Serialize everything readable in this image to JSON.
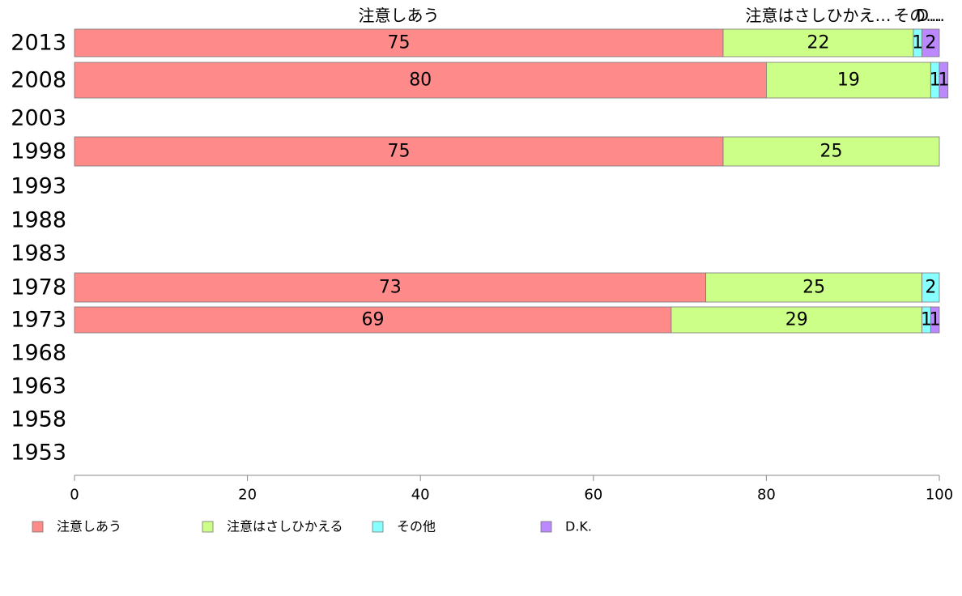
{
  "chart_data": {
    "type": "bar",
    "orientation": "horizontal",
    "stacked": true,
    "categories": [
      "2013",
      "2008",
      "2003",
      "1998",
      "1993",
      "1988",
      "1983",
      "1978",
      "1973",
      "1968",
      "1963",
      "1958",
      "1953"
    ],
    "series": [
      {
        "name": "注意しあう",
        "color": "#FF8A8A",
        "values": [
          75,
          80,
          null,
          75,
          null,
          null,
          null,
          73,
          69,
          null,
          null,
          null,
          null
        ]
      },
      {
        "name": "注意はさしひかえる",
        "color": "#CCFF88",
        "values": [
          22,
          19,
          null,
          25,
          null,
          null,
          null,
          25,
          29,
          null,
          null,
          null,
          null
        ]
      },
      {
        "name": "その他",
        "color": "#88FFFF",
        "values": [
          1,
          1,
          null,
          0,
          null,
          null,
          null,
          2,
          1,
          null,
          null,
          null,
          null
        ]
      },
      {
        "name": "D.K.",
        "color": "#BB88FF",
        "values": [
          2,
          1,
          null,
          0,
          null,
          null,
          null,
          0,
          1,
          null,
          null,
          null,
          null
        ]
      }
    ],
    "top_labels": [
      "注意しあう",
      "注意はさしひかえ…",
      "その…",
      "D…"
    ],
    "xlim": [
      0,
      100
    ],
    "xticks": [
      "0",
      "20",
      "40",
      "60",
      "80",
      "100"
    ],
    "xlabel": "",
    "ylabel": "",
    "grid": false,
    "legend_position": "bottom"
  }
}
